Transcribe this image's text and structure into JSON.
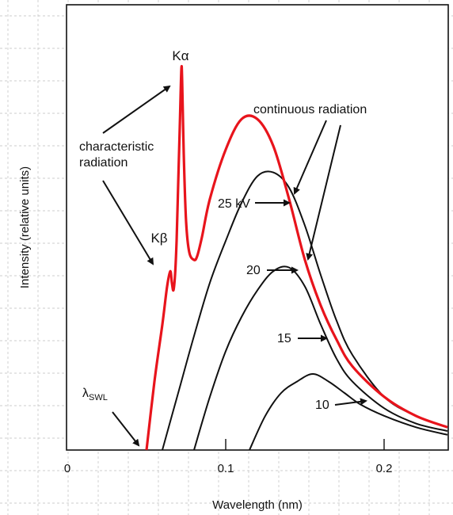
{
  "chart_data": {
    "type": "line",
    "title": "",
    "xlabel": "Wavelength (nm)",
    "ylabel": "Intensity (relative units)",
    "xlim": [
      0,
      0.24
    ],
    "ylim": [
      0,
      100
    ],
    "xticks": [
      "0",
      "0.1",
      "0.2"
    ],
    "xtick_values": [
      0,
      0.1,
      0.2
    ],
    "grid": false,
    "colors": {
      "highlight": "#e8141c",
      "curve": "#111111",
      "background_grid": "#bdbdbd"
    },
    "series": [
      {
        "name": "25 kV",
        "highlight": true,
        "x": [
          0.05,
          0.055,
          0.06,
          0.063,
          0.065,
          0.066,
          0.067,
          0.068,
          0.069,
          0.07,
          0.071,
          0.072,
          0.0725,
          0.0735,
          0.075,
          0.077,
          0.08,
          0.082,
          0.085,
          0.09,
          0.1,
          0.11,
          0.12,
          0.13,
          0.14,
          0.15,
          0.16,
          0.17,
          0.18,
          0.2,
          0.22,
          0.24
        ],
        "y": [
          0,
          18,
          33,
          43,
          47,
          44,
          42,
          46,
          55,
          70,
          85,
          100,
          97,
          78,
          60,
          52,
          50,
          51,
          56,
          66,
          79,
          87,
          87,
          80,
          66,
          50,
          38,
          29,
          22,
          14,
          9,
          6
        ]
      },
      {
        "name": "20",
        "x": [
          0.06,
          0.07,
          0.08,
          0.09,
          0.1,
          0.11,
          0.12,
          0.13,
          0.14,
          0.15,
          0.16,
          0.17,
          0.18,
          0.2,
          0.22,
          0.24
        ],
        "y": [
          0,
          15,
          30,
          44,
          55,
          65,
          72,
          73,
          69,
          59,
          46,
          34,
          25,
          14,
          9,
          6
        ]
      },
      {
        "name": "15",
        "x": [
          0.08,
          0.09,
          0.1,
          0.11,
          0.12,
          0.13,
          0.14,
          0.15,
          0.16,
          0.17,
          0.18,
          0.2,
          0.22,
          0.24
        ],
        "y": [
          0,
          14,
          26,
          35,
          42,
          47,
          48,
          43,
          33,
          24,
          18,
          11,
          7,
          5
        ]
      },
      {
        "name": "10",
        "x": [
          0.115,
          0.125,
          0.135,
          0.145,
          0.155,
          0.165,
          0.175,
          0.185,
          0.2,
          0.22,
          0.24
        ],
        "y": [
          0,
          9,
          15,
          18,
          20,
          18,
          15,
          12,
          9,
          6,
          4
        ]
      }
    ],
    "annotations": {
      "k_alpha": "Kα",
      "k_beta": "Kβ",
      "characteristic": [
        "characteristic",
        "radiation"
      ],
      "continuous": "continuous radiation",
      "lambda_swl": "λ",
      "lambda_swl_sub": "SWL",
      "kv_25": "25 kV",
      "kv_20": "20",
      "kv_15": "15",
      "kv_10": "10"
    }
  }
}
